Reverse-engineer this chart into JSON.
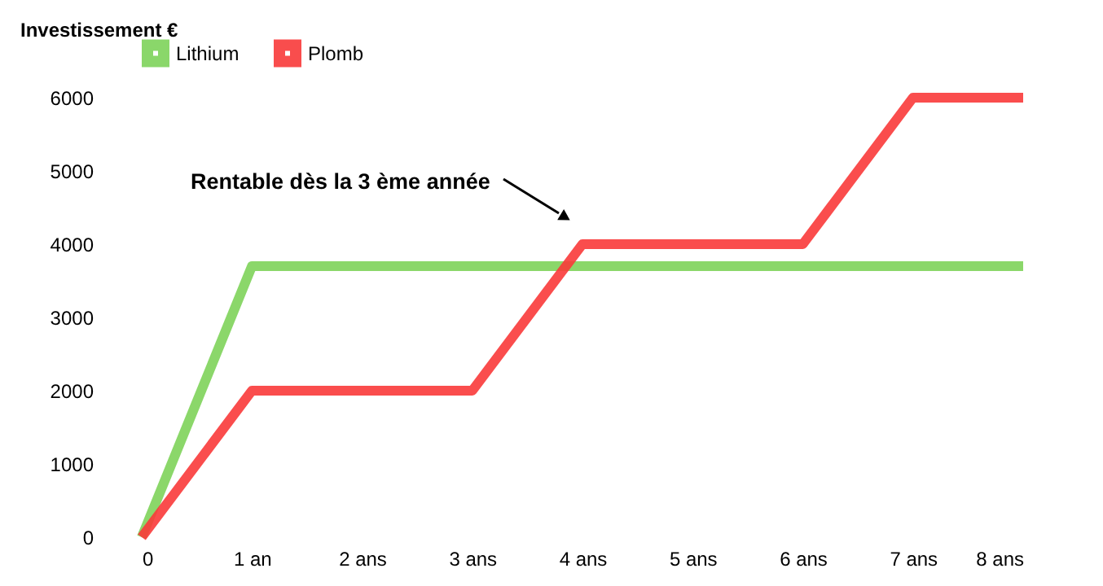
{
  "chart_data": {
    "type": "line",
    "ylabel": "Investissement €",
    "categories": [
      "0",
      "1 an",
      "2 ans",
      "3 ans",
      "4 ans",
      "5 ans",
      "6 ans",
      "7 ans",
      "8 ans"
    ],
    "series": [
      {
        "name": "Lithium",
        "color": "#7ed35a",
        "values": [
          0,
          3700,
          3700,
          3700,
          3700,
          3700,
          3700,
          3700,
          3700
        ]
      },
      {
        "name": "Plomb",
        "color": "#f93a3a",
        "values": [
          0,
          2000,
          2000,
          2000,
          4000,
          4000,
          4000,
          6000,
          6000
        ]
      }
    ],
    "ylim": [
      0,
      6000
    ],
    "yticks": [
      0,
      1000,
      2000,
      3000,
      4000,
      5000,
      6000
    ],
    "grid": false,
    "legend": "top",
    "marker": "none",
    "line_style": "solid",
    "annotations": [
      "Rentable dès la 3 ème année"
    ]
  }
}
